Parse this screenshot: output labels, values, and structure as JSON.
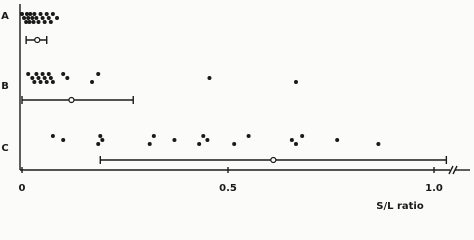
{
  "chart_data": {
    "type": "scatter",
    "xlabel": "S/L ratio",
    "categories": [
      "A",
      "B",
      "C"
    ],
    "series": [
      {
        "values": [
          0.0,
          0.005,
          0.01,
          0.012,
          0.015,
          0.018,
          0.02,
          0.025,
          0.028,
          0.03,
          0.035,
          0.04,
          0.045,
          0.05,
          0.055,
          0.06,
          0.065,
          0.07,
          0.075,
          0.085
        ]
      },
      {
        "values": [
          0.015,
          0.025,
          0.03,
          0.035,
          0.04,
          0.045,
          0.05,
          0.055,
          0.06,
          0.065,
          0.07,
          0.075,
          0.1,
          0.11,
          0.17,
          0.185,
          0.455,
          0.665
        ]
      },
      {
        "values": [
          0.075,
          0.1,
          0.185,
          0.19,
          0.195,
          0.31,
          0.32,
          0.37,
          0.43,
          0.44,
          0.45,
          0.515,
          0.55,
          0.655,
          0.665,
          0.68,
          0.765,
          0.865
        ]
      }
    ],
    "means": [
      0.037,
      0.12,
      0.61
    ],
    "ranges": [
      [
        0.01,
        0.06
      ],
      [
        0,
        0.27
      ],
      [
        0.19,
        1.03
      ]
    ],
    "color": "#1a1a1a",
    "xlim": [
      0,
      1.08
    ],
    "xticks": [
      0,
      0.5,
      {
        "value": 1,
        "label": "1.0"
      }
    ]
  }
}
